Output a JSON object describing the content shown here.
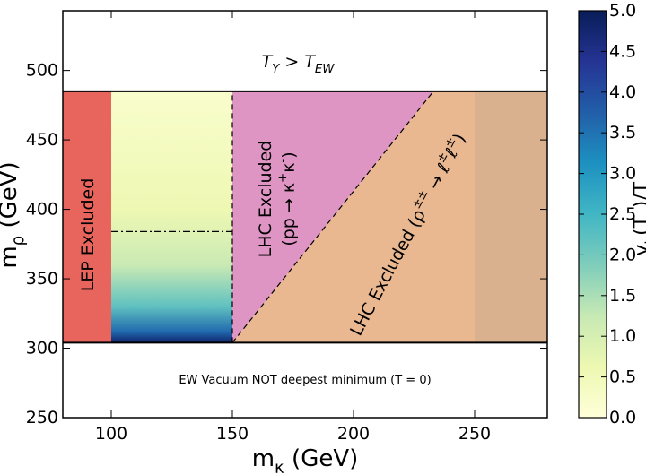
{
  "chart_data": {
    "type": "region",
    "x_label": "m_{κ} (GeV)",
    "y_label": "m_{ρ} (GeV)",
    "xlim": [
      80,
      280
    ],
    "ylim": [
      250,
      543
    ],
    "xticks": [
      100,
      150,
      200,
      250
    ],
    "yticks": [
      250,
      300,
      350,
      400,
      450,
      500
    ],
    "regions": [
      {
        "color": "#e8655d",
        "x": [
          80,
          100,
          100,
          80
        ],
        "y": [
          304,
          304,
          485,
          485
        ],
        "label": [
          "LEP Excluded"
        ]
      },
      {
        "color": "#e9b790",
        "x": [
          150,
          233,
          280,
          280
        ],
        "y": [
          304,
          485,
          485,
          304
        ],
        "label": [
          "LHC Excluded (ρ^{±±} → ℓ^{±}ℓ^{±})"
        ]
      },
      {
        "color": "#d9b18f",
        "x": [
          250,
          280,
          280,
          250
        ],
        "y": [
          304,
          304,
          485,
          485
        ]
      },
      {
        "color": "#df95c4",
        "x": [
          150,
          150,
          233
        ],
        "y": [
          304,
          485,
          485
        ],
        "label": [
          "LHC Excluded",
          "(pp → κ^{+}κ^{-})"
        ]
      },
      {
        "x": [
          100,
          150,
          150,
          100
        ],
        "y": [
          304,
          304,
          485,
          485
        ],
        "z_y": [
          304,
          312,
          330,
          360,
          400,
          485
        ],
        "z": [
          4.8,
          3.6,
          2.2,
          1.2,
          0.6,
          0.2
        ]
      }
    ],
    "lines": [
      {
        "x": [
          80,
          280
        ],
        "y": [
          485,
          485
        ],
        "style": "solid"
      },
      {
        "x": [
          80,
          280
        ],
        "y": [
          304,
          304
        ],
        "style": "solid"
      },
      {
        "x": [
          150,
          150
        ],
        "y": [
          304,
          485
        ],
        "style": "dashed"
      },
      {
        "x": [
          150,
          233
        ],
        "y": [
          304,
          485
        ],
        "style": "dashed"
      },
      {
        "x": [
          100,
          150
        ],
        "y": [
          384,
          384
        ],
        "style": "dashdot"
      }
    ],
    "annotations": [
      "T_{Y} > T_{EW}",
      "EW Vacuum NOT deepest minimum (T = 0)"
    ],
    "colorbar": {
      "label": "v_{h}(T_{c})/T_{c}",
      "clim": [
        0,
        5
      ],
      "colors": [
        "#ffffd9",
        "#edf8b1",
        "#c7e9b4",
        "#7fcdbb",
        "#41b6c4",
        "#1d91c0",
        "#225ea8",
        "#253494",
        "#081d58"
      ],
      "ticks": [
        {
          "value": 0,
          "label": "0.0"
        },
        {
          "value": 0.5,
          "label": "0.5"
        },
        {
          "value": 1,
          "label": "1.0"
        },
        {
          "value": 1.5,
          "label": "1.5"
        },
        {
          "value": 2,
          "label": "2.0"
        },
        {
          "value": 2.5,
          "label": "2.5"
        },
        {
          "value": 3,
          "label": "3.0"
        },
        {
          "value": 3.5,
          "label": "3.5"
        },
        {
          "value": 4,
          "label": "4.0"
        },
        {
          "value": 4.5,
          "label": "4.5"
        },
        {
          "value": 5,
          "label": "5.0"
        }
      ]
    }
  }
}
